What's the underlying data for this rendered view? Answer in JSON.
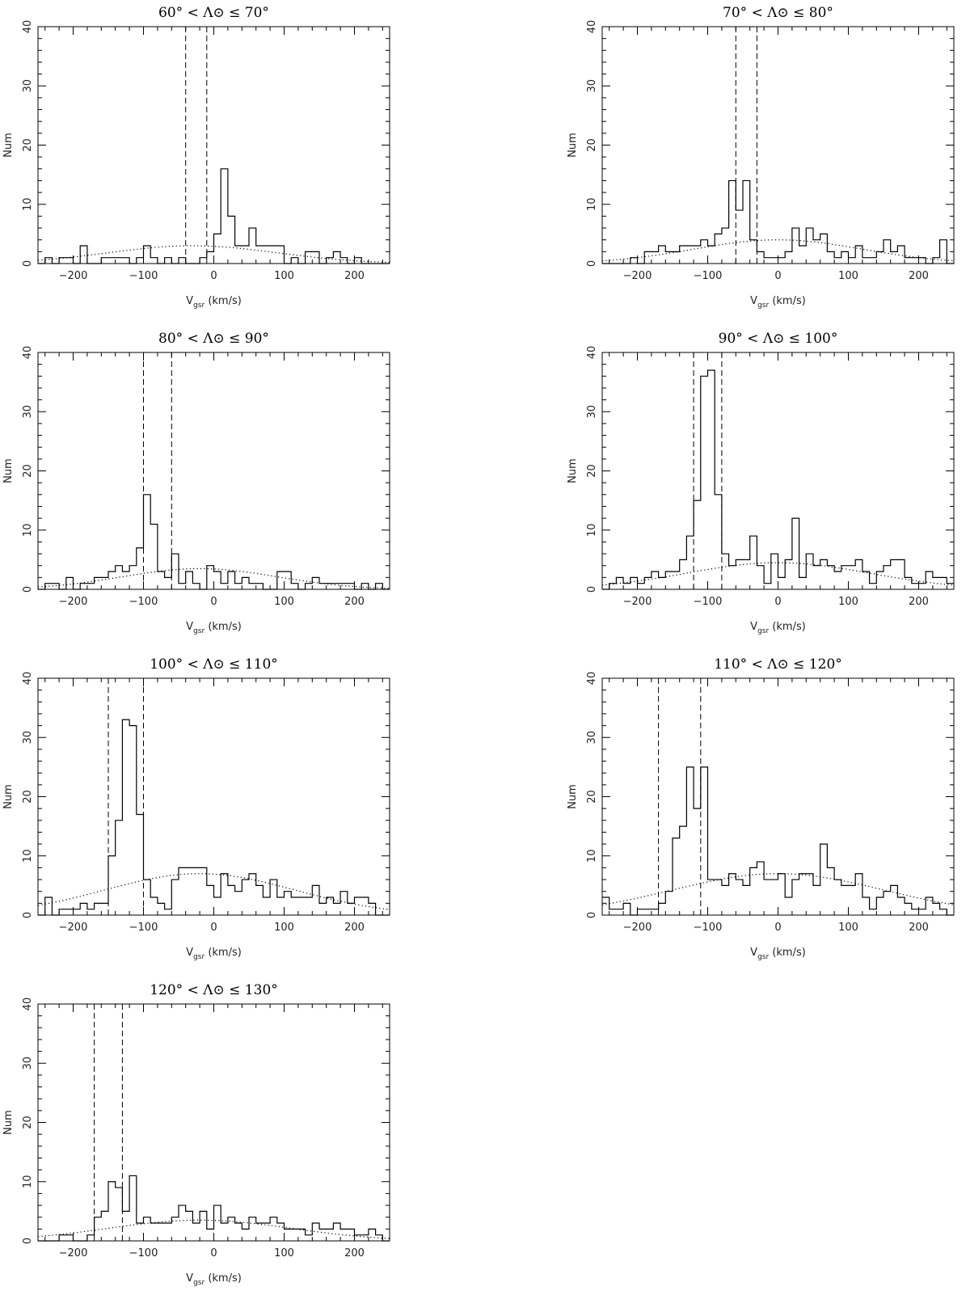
{
  "figure": {
    "x_label_main": "V",
    "x_label_sub": "gsr",
    "x_label_units": " (km/s)",
    "y_label": "Num"
  },
  "chart_data": [
    {
      "type": "bar",
      "title": "60° < Λ⊙ ≤ 70°",
      "xlim": [
        -250,
        250
      ],
      "ylim": [
        0,
        40
      ],
      "xticks": [
        -200,
        -100,
        0,
        100,
        200
      ],
      "yticks": [
        0,
        10,
        20,
        30,
        40
      ],
      "bin_start": -250,
      "bin_width": 10,
      "counts": [
        0,
        1,
        0,
        1,
        1,
        0,
        3,
        0,
        0,
        1,
        1,
        1,
        1,
        0,
        1,
        3,
        1,
        0,
        1,
        0,
        1,
        0,
        0,
        1,
        2,
        5,
        16,
        8,
        3,
        3,
        6,
        3,
        3,
        3,
        3,
        0,
        1,
        0,
        2,
        2,
        0,
        1,
        2,
        1,
        0,
        1,
        0,
        0,
        0,
        0
      ],
      "dashed_lines": [
        -40,
        -10
      ],
      "fit": {
        "amplitude": 3.0,
        "mean": -30,
        "sigma": 120
      }
    },
    {
      "type": "bar",
      "title": "70° < Λ⊙ ≤ 80°",
      "xlim": [
        -250,
        250
      ],
      "ylim": [
        0,
        40
      ],
      "xticks": [
        -200,
        -100,
        0,
        100,
        200
      ],
      "yticks": [
        0,
        10,
        20,
        30,
        40
      ],
      "bin_start": -250,
      "bin_width": 10,
      "counts": [
        0,
        0,
        0,
        0,
        1,
        0,
        2,
        2,
        3,
        2,
        2,
        3,
        3,
        3,
        4,
        3,
        5,
        6,
        14,
        9,
        14,
        4,
        2,
        1,
        1,
        1,
        2,
        6,
        3,
        6,
        4,
        5,
        2,
        1,
        2,
        1,
        3,
        1,
        1,
        2,
        4,
        2,
        3,
        1,
        1,
        1,
        0,
        1,
        4,
        0
      ],
      "dashed_lines": [
        -60,
        -30
      ],
      "fit": {
        "amplitude": 4.0,
        "mean": 0,
        "sigma": 120
      }
    },
    {
      "type": "bar",
      "title": "80° < Λ⊙ ≤ 90°",
      "xlim": [
        -250,
        250
      ],
      "ylim": [
        0,
        40
      ],
      "xticks": [
        -200,
        -100,
        0,
        100,
        200
      ],
      "yticks": [
        0,
        10,
        20,
        30,
        40
      ],
      "bin_start": -250,
      "bin_width": 10,
      "counts": [
        0,
        1,
        1,
        0,
        2,
        0,
        1,
        1,
        2,
        2,
        3,
        4,
        3,
        4,
        7,
        16,
        11,
        3,
        2,
        6,
        1,
        3,
        1,
        0,
        4,
        3,
        1,
        3,
        1,
        2,
        1,
        1,
        0,
        0,
        3,
        3,
        1,
        0,
        1,
        2,
        1,
        1,
        1,
        1,
        1,
        0,
        1,
        0,
        1,
        0
      ],
      "dashed_lines": [
        -100,
        -60
      ],
      "fit": {
        "amplitude": 3.5,
        "mean": -20,
        "sigma": 110
      }
    },
    {
      "type": "bar",
      "title": "90° < Λ⊙ ≤ 100°",
      "xlim": [
        -250,
        250
      ],
      "ylim": [
        0,
        40
      ],
      "xticks": [
        -200,
        -100,
        0,
        100,
        200
      ],
      "yticks": [
        0,
        10,
        20,
        30,
        40
      ],
      "bin_start": -250,
      "bin_width": 10,
      "counts": [
        0,
        1,
        2,
        1,
        2,
        1,
        2,
        3,
        2,
        3,
        3,
        5,
        9,
        15,
        36,
        37,
        16,
        6,
        4,
        5,
        5,
        9,
        4,
        1,
        6,
        2,
        5,
        12,
        2,
        6,
        4,
        5,
        4,
        3,
        4,
        4,
        5,
        3,
        1,
        3,
        4,
        5,
        5,
        2,
        1,
        1,
        3,
        2,
        2,
        1
      ],
      "dashed_lines": [
        -120,
        -80
      ],
      "fit": {
        "amplitude": 4.5,
        "mean": 0,
        "sigma": 130
      }
    },
    {
      "type": "bar",
      "title": "100° < Λ⊙ ≤ 110°",
      "xlim": [
        -250,
        250
      ],
      "ylim": [
        0,
        40
      ],
      "xticks": [
        -200,
        -100,
        0,
        100,
        200
      ],
      "yticks": [
        0,
        10,
        20,
        30,
        40
      ],
      "bin_start": -250,
      "bin_width": 10,
      "counts": [
        0,
        3,
        0,
        1,
        1,
        1,
        2,
        1,
        2,
        2,
        10,
        16,
        33,
        32,
        17,
        6,
        3,
        2,
        1,
        6,
        8,
        8,
        8,
        8,
        5,
        3,
        7,
        5,
        4,
        6,
        7,
        5,
        3,
        6,
        3,
        4,
        3,
        3,
        3,
        5,
        2,
        3,
        2,
        4,
        2,
        3,
        3,
        2,
        0,
        0
      ],
      "dashed_lines": [
        -150,
        -100
      ],
      "fit": {
        "amplitude": 7.0,
        "mean": -20,
        "sigma": 135
      }
    },
    {
      "type": "bar",
      "title": "110° < Λ⊙ ≤ 120°",
      "xlim": [
        -250,
        250
      ],
      "ylim": [
        0,
        40
      ],
      "xticks": [
        -200,
        -100,
        0,
        100,
        200
      ],
      "yticks": [
        0,
        10,
        20,
        30,
        40
      ],
      "bin_start": -250,
      "bin_width": 10,
      "counts": [
        3,
        1,
        1,
        2,
        0,
        1,
        1,
        1,
        2,
        4,
        13,
        15,
        25,
        18,
        25,
        6,
        6,
        5,
        7,
        6,
        5,
        8,
        9,
        6,
        6,
        7,
        3,
        6,
        7,
        7,
        5,
        12,
        8,
        6,
        5,
        5,
        7,
        3,
        1,
        3,
        4,
        5,
        3,
        2,
        1,
        1,
        3,
        2,
        1,
        0
      ],
      "dashed_lines": [
        -170,
        -110
      ],
      "fit": {
        "amplitude": 7.0,
        "mean": 0,
        "sigma": 150
      }
    },
    {
      "type": "bar",
      "title": "120° < Λ⊙ ≤ 130°",
      "xlim": [
        -250,
        250
      ],
      "ylim": [
        0,
        40
      ],
      "xticks": [
        -200,
        -100,
        0,
        100,
        200
      ],
      "yticks": [
        0,
        10,
        20,
        30,
        40
      ],
      "bin_start": -250,
      "bin_width": 10,
      "counts": [
        0,
        0,
        0,
        1,
        1,
        0,
        0,
        1,
        4,
        5,
        10,
        9,
        5,
        11,
        3,
        4,
        3,
        3,
        3,
        4,
        6,
        5,
        3,
        5,
        2,
        6,
        3,
        4,
        3,
        2,
        4,
        3,
        3,
        4,
        3,
        2,
        2,
        2,
        1,
        3,
        2,
        2,
        3,
        2,
        2,
        1,
        1,
        2,
        1,
        0
      ],
      "dashed_lines": [
        -170,
        -130
      ],
      "fit": {
        "amplitude": 3.5,
        "mean": -20,
        "sigma": 130
      }
    }
  ]
}
